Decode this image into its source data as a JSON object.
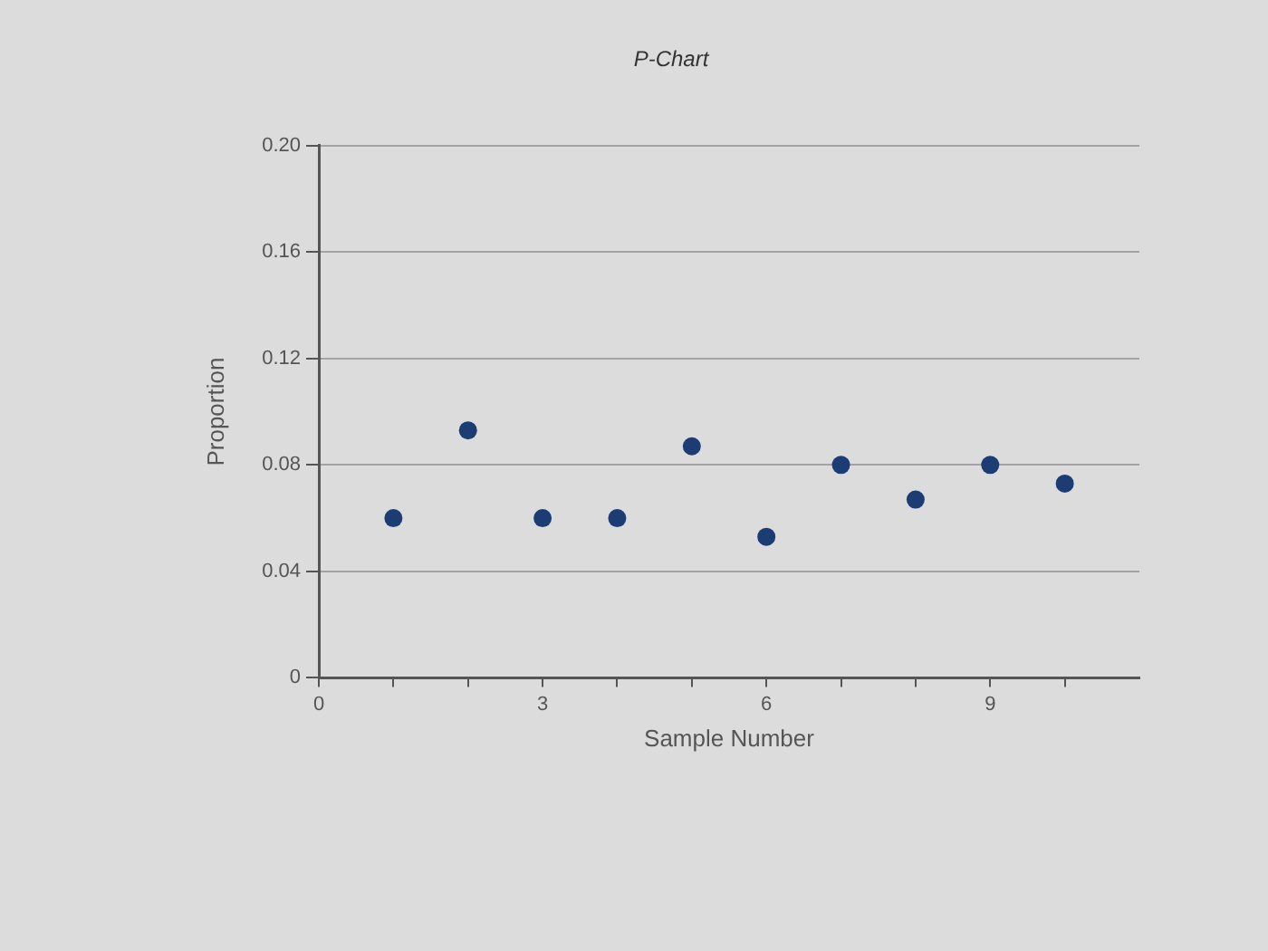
{
  "chart_data": {
    "type": "scatter",
    "title": "P-Chart",
    "xlabel": "Sample Number",
    "ylabel": "Proportion",
    "x": [
      1,
      2,
      3,
      4,
      5,
      6,
      7,
      8,
      9,
      10
    ],
    "series": [
      {
        "color": "#1c3c74",
        "values": [
          0.06,
          0.093,
          0.06,
          0.06,
          0.087,
          0.053,
          0.08,
          0.067,
          0.08,
          0.073
        ]
      }
    ],
    "xlim": [
      0,
      11
    ],
    "xticks": [
      0,
      {
        "value": 1,
        "label": null
      },
      {
        "value": 2,
        "label": null
      },
      3,
      {
        "value": 4,
        "label": null
      },
      {
        "value": 5,
        "label": null
      },
      6,
      {
        "value": 7,
        "label": null
      },
      {
        "value": 8,
        "label": null
      },
      9,
      {
        "value": 10,
        "label": null
      }
    ],
    "ylim": [
      0,
      0.2
    ],
    "yticks": [
      0,
      0.04,
      0.08,
      0.12,
      0.16,
      {
        "value": 0.2,
        "label": "0.20"
      }
    ],
    "grid": "y",
    "legend": false,
    "marker": "circle"
  }
}
